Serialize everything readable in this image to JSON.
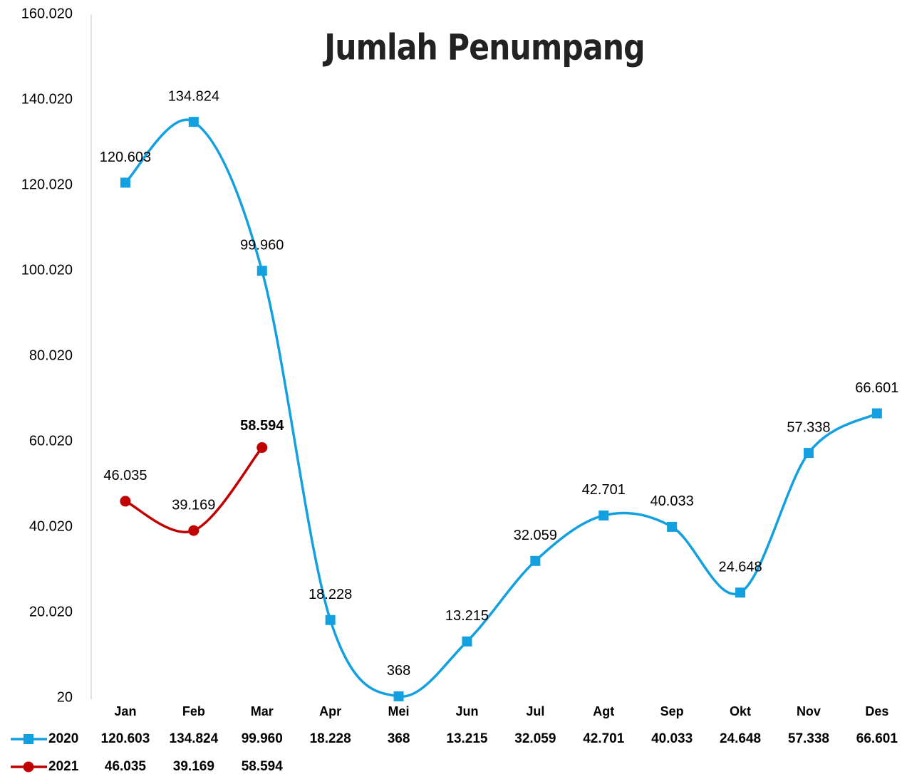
{
  "chart_data": {
    "type": "line",
    "title": "Jumlah Penumpang",
    "categories": [
      "Jan",
      "Feb",
      "Mar",
      "Apr",
      "Mei",
      "Jun",
      "Jul",
      "Agt",
      "Sep",
      "Okt",
      "Nov",
      "Des"
    ],
    "series": [
      {
        "name": "2020",
        "color": "#12a0e0",
        "marker": "square",
        "values": [
          120603,
          134824,
          99960,
          18228,
          368,
          13215,
          32059,
          42701,
          40033,
          24648,
          57338,
          66601
        ],
        "value_labels": [
          "120.603",
          "134.824",
          "99.960",
          "18.228",
          "368",
          "13.215",
          "32.059",
          "42.701",
          "40.033",
          "24.648",
          "57.338",
          "66.601"
        ]
      },
      {
        "name": "2021",
        "color": "#c00000",
        "marker": "circle",
        "values": [
          46035,
          39169,
          58594,
          null,
          null,
          null,
          null,
          null,
          null,
          null,
          null,
          null
        ],
        "value_labels": [
          "46.035",
          "39.169",
          "58.594",
          null,
          null,
          null,
          null,
          null,
          null,
          null,
          null,
          null
        ]
      }
    ],
    "ylim": [
      20,
      160020
    ],
    "yticks": [
      20,
      {
        "value": 20020,
        "label": "20.020"
      },
      {
        "value": 40020,
        "label": "40.020"
      },
      {
        "value": 60020,
        "label": "60.020"
      },
      {
        "value": 80020,
        "label": "80.020"
      },
      {
        "value": 100020,
        "label": "100.020"
      },
      {
        "value": 120020,
        "label": "120.020"
      },
      {
        "value": 140020,
        "label": "140.020"
      },
      {
        "value": 160020,
        "label": "160.020"
      }
    ],
    "grid": false,
    "smooth": true,
    "data_table": true
  }
}
